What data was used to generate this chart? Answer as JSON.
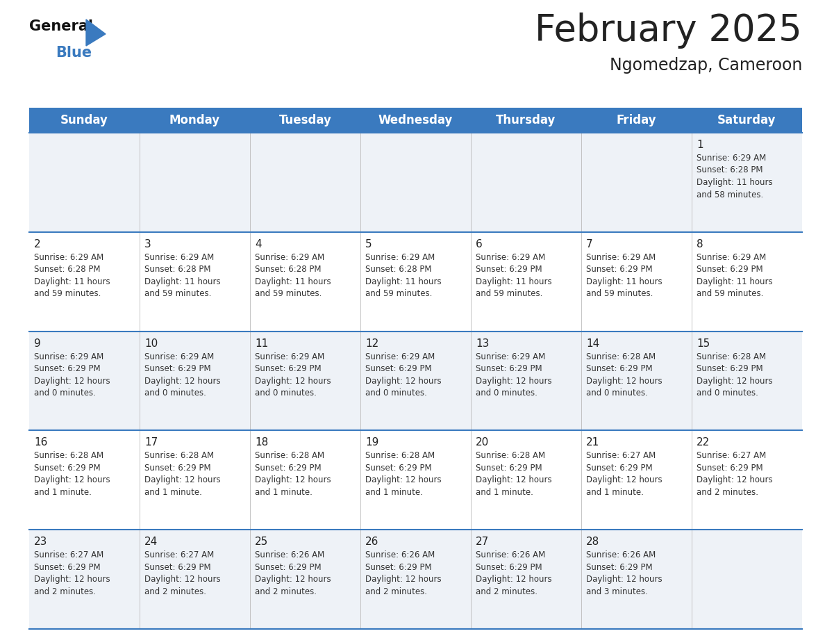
{
  "title": "February 2025",
  "subtitle": "Ngomedzap, Cameroon",
  "header_color": "#3a7abf",
  "header_text_color": "#ffffff",
  "cell_bg_alt": "#eef2f7",
  "cell_bg_white": "#ffffff",
  "separator_color": "#3a7abf",
  "text_color": "#222222",
  "info_color": "#333333",
  "day_headers": [
    "Sunday",
    "Monday",
    "Tuesday",
    "Wednesday",
    "Thursday",
    "Friday",
    "Saturday"
  ],
  "title_fontsize": 38,
  "subtitle_fontsize": 17,
  "day_header_fontsize": 12,
  "date_fontsize": 11,
  "info_fontsize": 8.5,
  "weeks": [
    {
      "days": [
        {
          "date": "",
          "info": ""
        },
        {
          "date": "",
          "info": ""
        },
        {
          "date": "",
          "info": ""
        },
        {
          "date": "",
          "info": ""
        },
        {
          "date": "",
          "info": ""
        },
        {
          "date": "",
          "info": ""
        },
        {
          "date": "1",
          "info": "Sunrise: 6:29 AM\nSunset: 6:28 PM\nDaylight: 11 hours\nand 58 minutes."
        }
      ]
    },
    {
      "days": [
        {
          "date": "2",
          "info": "Sunrise: 6:29 AM\nSunset: 6:28 PM\nDaylight: 11 hours\nand 59 minutes."
        },
        {
          "date": "3",
          "info": "Sunrise: 6:29 AM\nSunset: 6:28 PM\nDaylight: 11 hours\nand 59 minutes."
        },
        {
          "date": "4",
          "info": "Sunrise: 6:29 AM\nSunset: 6:28 PM\nDaylight: 11 hours\nand 59 minutes."
        },
        {
          "date": "5",
          "info": "Sunrise: 6:29 AM\nSunset: 6:28 PM\nDaylight: 11 hours\nand 59 minutes."
        },
        {
          "date": "6",
          "info": "Sunrise: 6:29 AM\nSunset: 6:29 PM\nDaylight: 11 hours\nand 59 minutes."
        },
        {
          "date": "7",
          "info": "Sunrise: 6:29 AM\nSunset: 6:29 PM\nDaylight: 11 hours\nand 59 minutes."
        },
        {
          "date": "8",
          "info": "Sunrise: 6:29 AM\nSunset: 6:29 PM\nDaylight: 11 hours\nand 59 minutes."
        }
      ]
    },
    {
      "days": [
        {
          "date": "9",
          "info": "Sunrise: 6:29 AM\nSunset: 6:29 PM\nDaylight: 12 hours\nand 0 minutes."
        },
        {
          "date": "10",
          "info": "Sunrise: 6:29 AM\nSunset: 6:29 PM\nDaylight: 12 hours\nand 0 minutes."
        },
        {
          "date": "11",
          "info": "Sunrise: 6:29 AM\nSunset: 6:29 PM\nDaylight: 12 hours\nand 0 minutes."
        },
        {
          "date": "12",
          "info": "Sunrise: 6:29 AM\nSunset: 6:29 PM\nDaylight: 12 hours\nand 0 minutes."
        },
        {
          "date": "13",
          "info": "Sunrise: 6:29 AM\nSunset: 6:29 PM\nDaylight: 12 hours\nand 0 minutes."
        },
        {
          "date": "14",
          "info": "Sunrise: 6:28 AM\nSunset: 6:29 PM\nDaylight: 12 hours\nand 0 minutes."
        },
        {
          "date": "15",
          "info": "Sunrise: 6:28 AM\nSunset: 6:29 PM\nDaylight: 12 hours\nand 0 minutes."
        }
      ]
    },
    {
      "days": [
        {
          "date": "16",
          "info": "Sunrise: 6:28 AM\nSunset: 6:29 PM\nDaylight: 12 hours\nand 1 minute."
        },
        {
          "date": "17",
          "info": "Sunrise: 6:28 AM\nSunset: 6:29 PM\nDaylight: 12 hours\nand 1 minute."
        },
        {
          "date": "18",
          "info": "Sunrise: 6:28 AM\nSunset: 6:29 PM\nDaylight: 12 hours\nand 1 minute."
        },
        {
          "date": "19",
          "info": "Sunrise: 6:28 AM\nSunset: 6:29 PM\nDaylight: 12 hours\nand 1 minute."
        },
        {
          "date": "20",
          "info": "Sunrise: 6:28 AM\nSunset: 6:29 PM\nDaylight: 12 hours\nand 1 minute."
        },
        {
          "date": "21",
          "info": "Sunrise: 6:27 AM\nSunset: 6:29 PM\nDaylight: 12 hours\nand 1 minute."
        },
        {
          "date": "22",
          "info": "Sunrise: 6:27 AM\nSunset: 6:29 PM\nDaylight: 12 hours\nand 2 minutes."
        }
      ]
    },
    {
      "days": [
        {
          "date": "23",
          "info": "Sunrise: 6:27 AM\nSunset: 6:29 PM\nDaylight: 12 hours\nand 2 minutes."
        },
        {
          "date": "24",
          "info": "Sunrise: 6:27 AM\nSunset: 6:29 PM\nDaylight: 12 hours\nand 2 minutes."
        },
        {
          "date": "25",
          "info": "Sunrise: 6:26 AM\nSunset: 6:29 PM\nDaylight: 12 hours\nand 2 minutes."
        },
        {
          "date": "26",
          "info": "Sunrise: 6:26 AM\nSunset: 6:29 PM\nDaylight: 12 hours\nand 2 minutes."
        },
        {
          "date": "27",
          "info": "Sunrise: 6:26 AM\nSunset: 6:29 PM\nDaylight: 12 hours\nand 2 minutes."
        },
        {
          "date": "28",
          "info": "Sunrise: 6:26 AM\nSunset: 6:29 PM\nDaylight: 12 hours\nand 3 minutes."
        },
        {
          "date": "",
          "info": ""
        }
      ]
    }
  ]
}
